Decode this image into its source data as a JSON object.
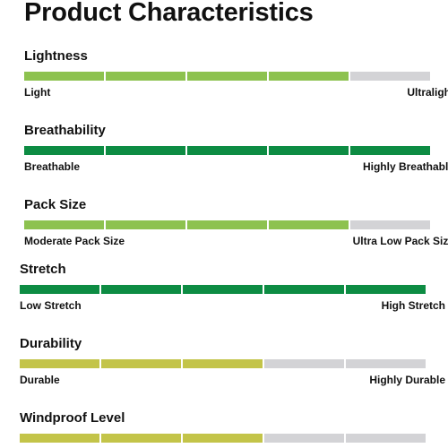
{
  "title": "Product Characteristics",
  "colors": {
    "light_green": "#8dc24f",
    "dark_green": "#0d8c43",
    "olive": "#c3c449",
    "empty": "#d3d3d6"
  },
  "sections": [
    {
      "title": "Lightness",
      "left_label": "Light",
      "right_label": "Ultralight",
      "filled": 4,
      "total": 5,
      "fill_color": "light_green"
    },
    {
      "title": "Breathability",
      "left_label": "Breathable",
      "right_label": "Highly Breathable",
      "filled": 5,
      "total": 5,
      "fill_color": "dark_green"
    },
    {
      "title": "Pack Size",
      "left_label": "Moderate Pack Size",
      "right_label": "Ultra Low Pack Size",
      "filled": 4,
      "total": 5,
      "fill_color": "light_green"
    },
    {
      "title": "Stretch",
      "left_label": "Low Stretch",
      "right_label": "High Stretch",
      "filled": 5,
      "total": 5,
      "fill_color": "dark_green"
    },
    {
      "title": "Durability",
      "left_label": "Durable",
      "right_label": "Highly Durable",
      "filled": 3,
      "total": 5,
      "fill_color": "olive"
    },
    {
      "title": "Windproof Level",
      "left_label": "",
      "right_label": "",
      "filled": 3,
      "total": 5,
      "fill_color": "olive"
    }
  ]
}
